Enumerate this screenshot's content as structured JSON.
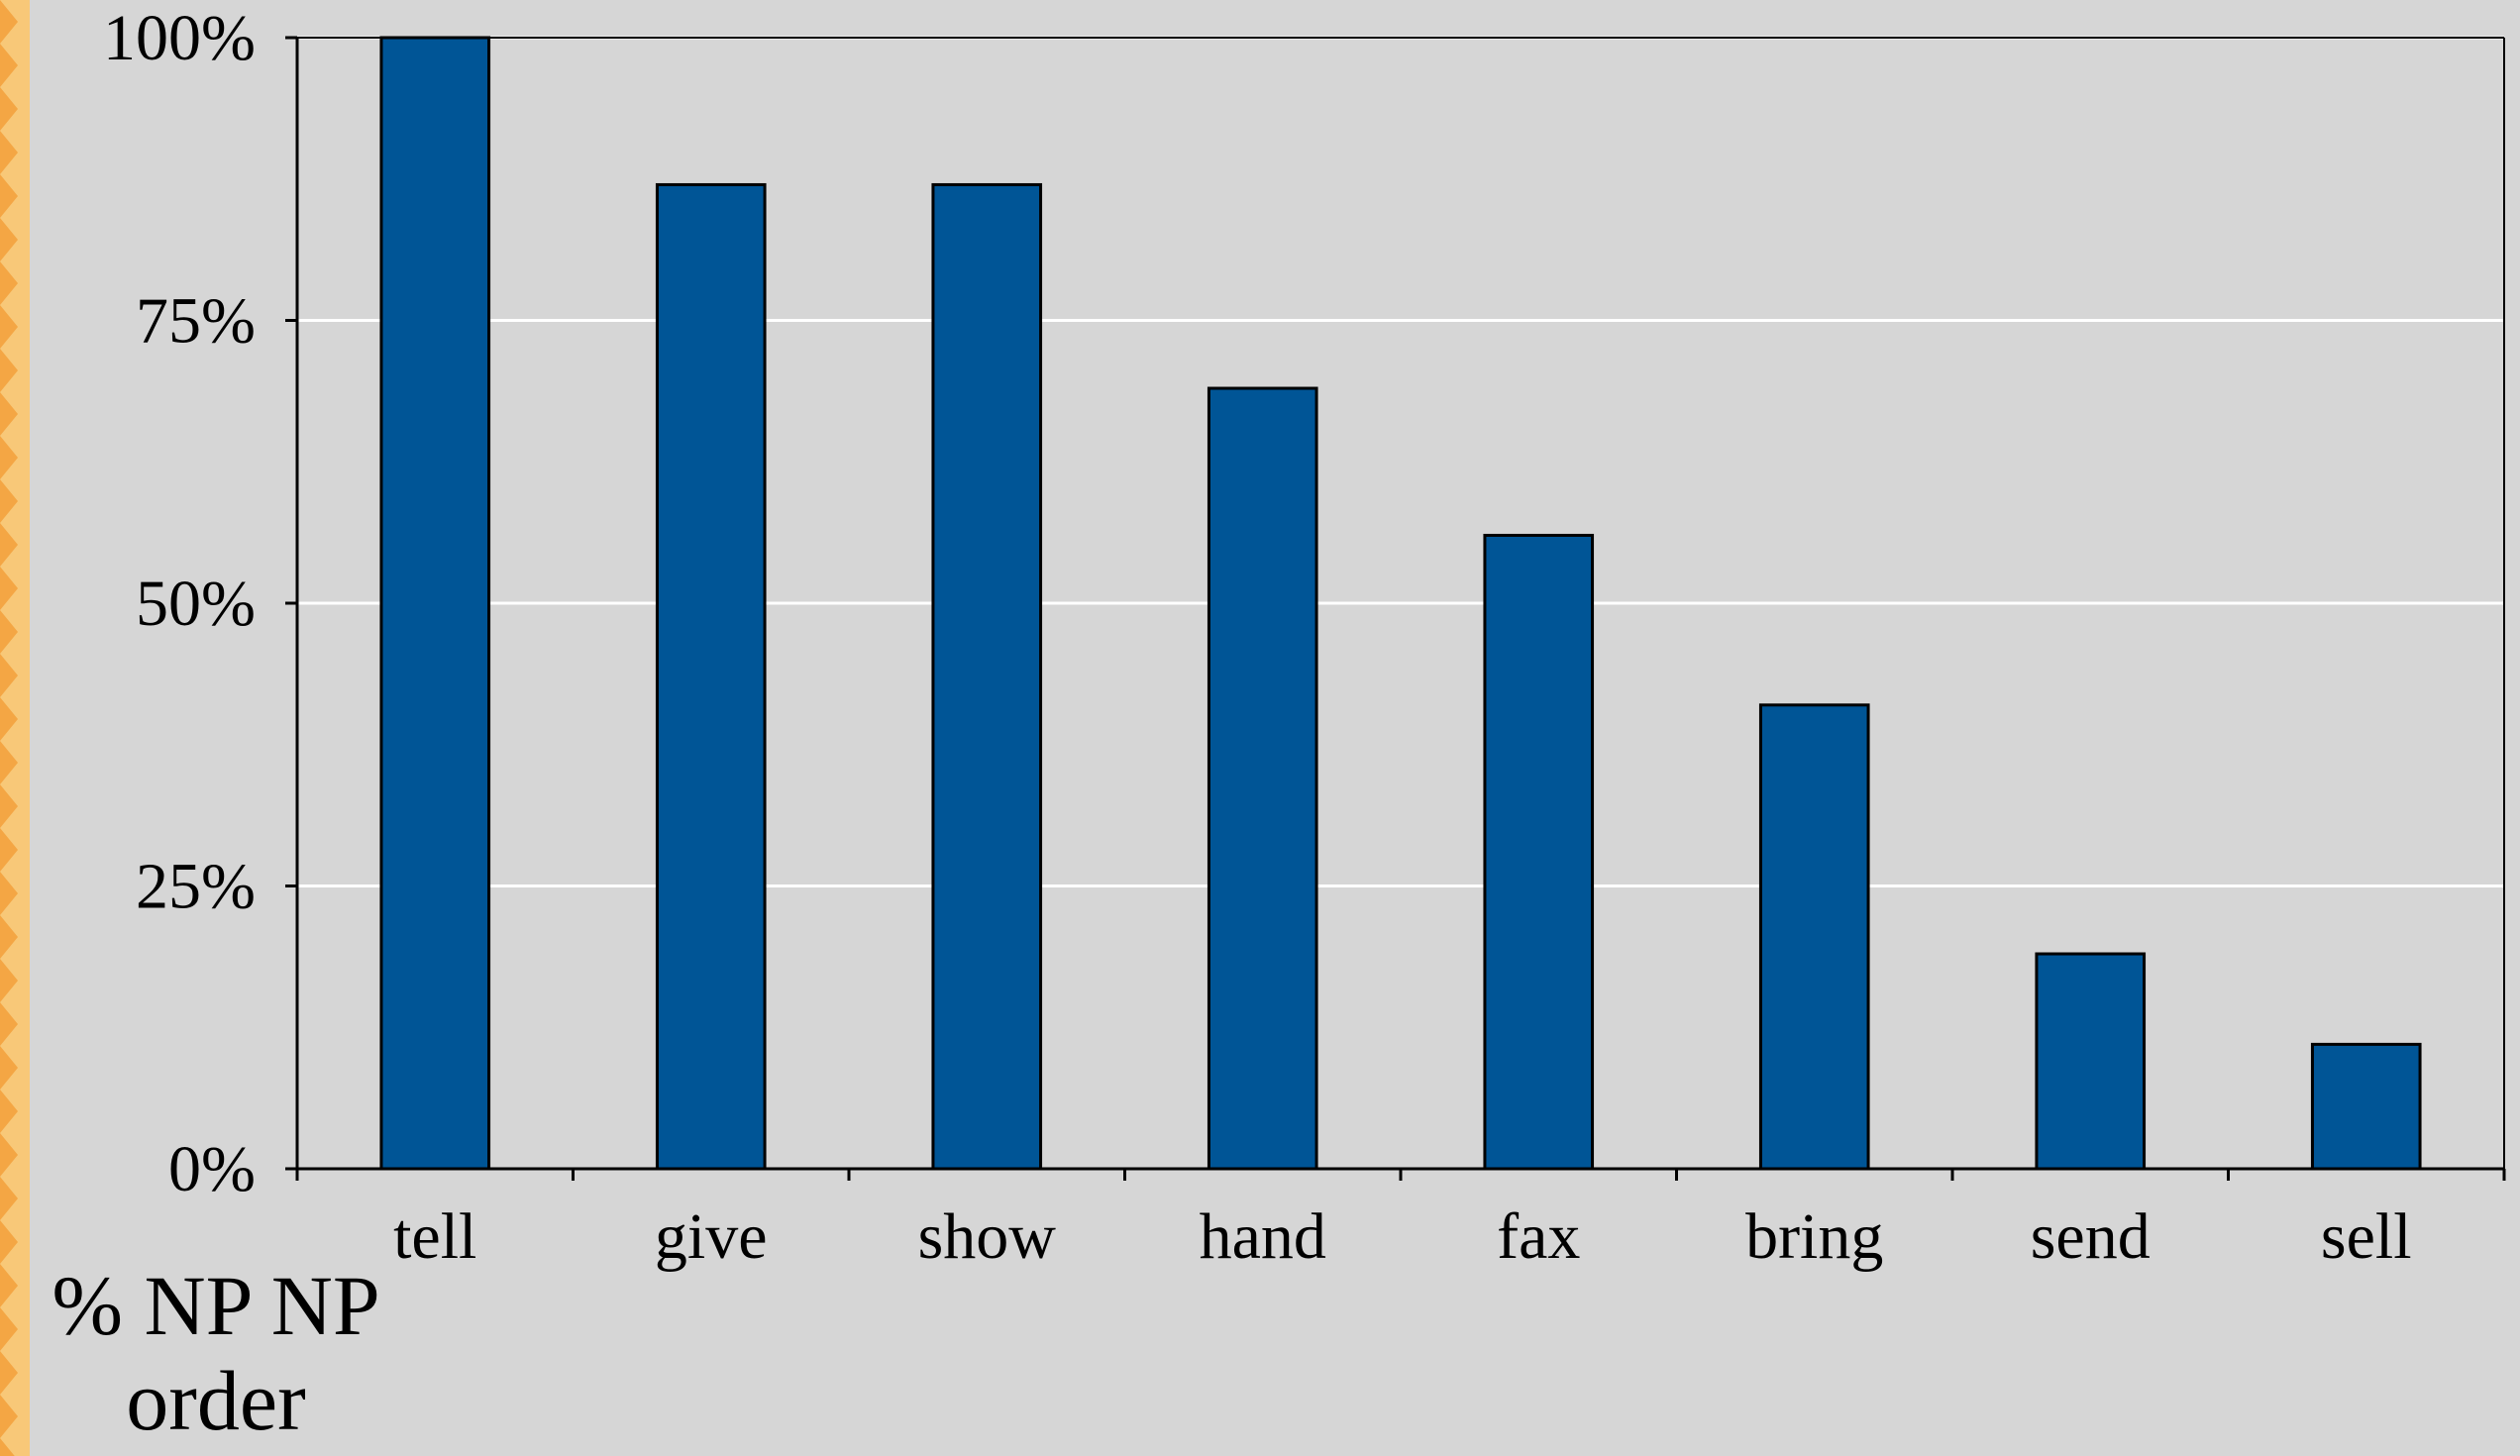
{
  "colors": {
    "background": "#d6d6d6",
    "bar_fill": "#005596",
    "bar_stroke": "#000000",
    "gridline": "#ffffff",
    "stripe": "#f8c878",
    "stripe_chevron": "#f4a644"
  },
  "caption": "% NP NP order",
  "chart_data": {
    "type": "bar",
    "categories": [
      "tell",
      "give",
      "show",
      "hand",
      "fax",
      "bring",
      "send",
      "sell"
    ],
    "values": [
      100,
      87,
      87,
      69,
      56,
      41,
      19,
      11
    ],
    "title": "",
    "xlabel": "% NP NP order",
    "ylabel": "",
    "ylim": [
      0,
      100
    ],
    "yticks": [
      0,
      25,
      50,
      75,
      100
    ],
    "ytick_labels": [
      "0%",
      "25%",
      "50%",
      "75%",
      "100%"
    ],
    "grid": true,
    "legend": "none"
  }
}
